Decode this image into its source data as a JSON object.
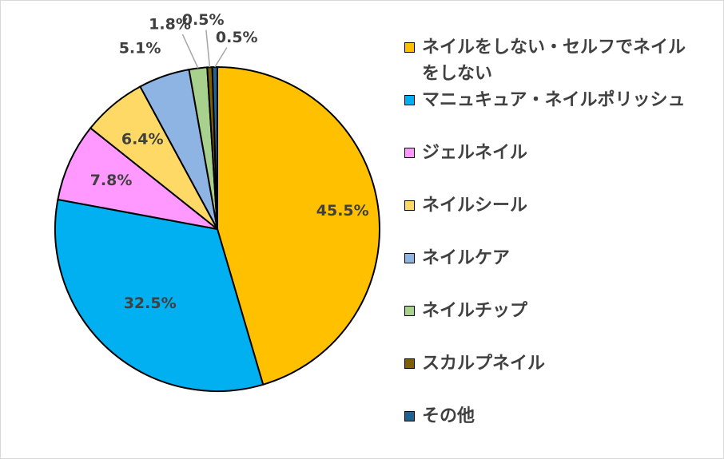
{
  "chart_data": {
    "type": "pie",
    "title": "",
    "categories": [
      "ネイルをしない・セルフでネイルをしない",
      "マニュキュア・ネイルポリッシュ",
      "ジェルネイル",
      "ネイルシール",
      "ネイルケア",
      "ネイルチップ",
      "スカルプネイル",
      "その他"
    ],
    "values": [
      45.5,
      32.5,
      7.8,
      6.4,
      5.1,
      1.8,
      0.5,
      0.5
    ],
    "labels": [
      "45.5%",
      "32.5%",
      "7.8%",
      "6.4%",
      "5.1%",
      "1.8%",
      "0.5%",
      "0.5%"
    ],
    "colors": [
      "#FFC000",
      "#00B0F0",
      "#FF99FF",
      "#FFD966",
      "#8EB4E3",
      "#A9D18E",
      "#7F6000",
      "#1F6391"
    ],
    "start_angle_deg": 0,
    "direction": "clockwise",
    "legend_position": "right"
  }
}
